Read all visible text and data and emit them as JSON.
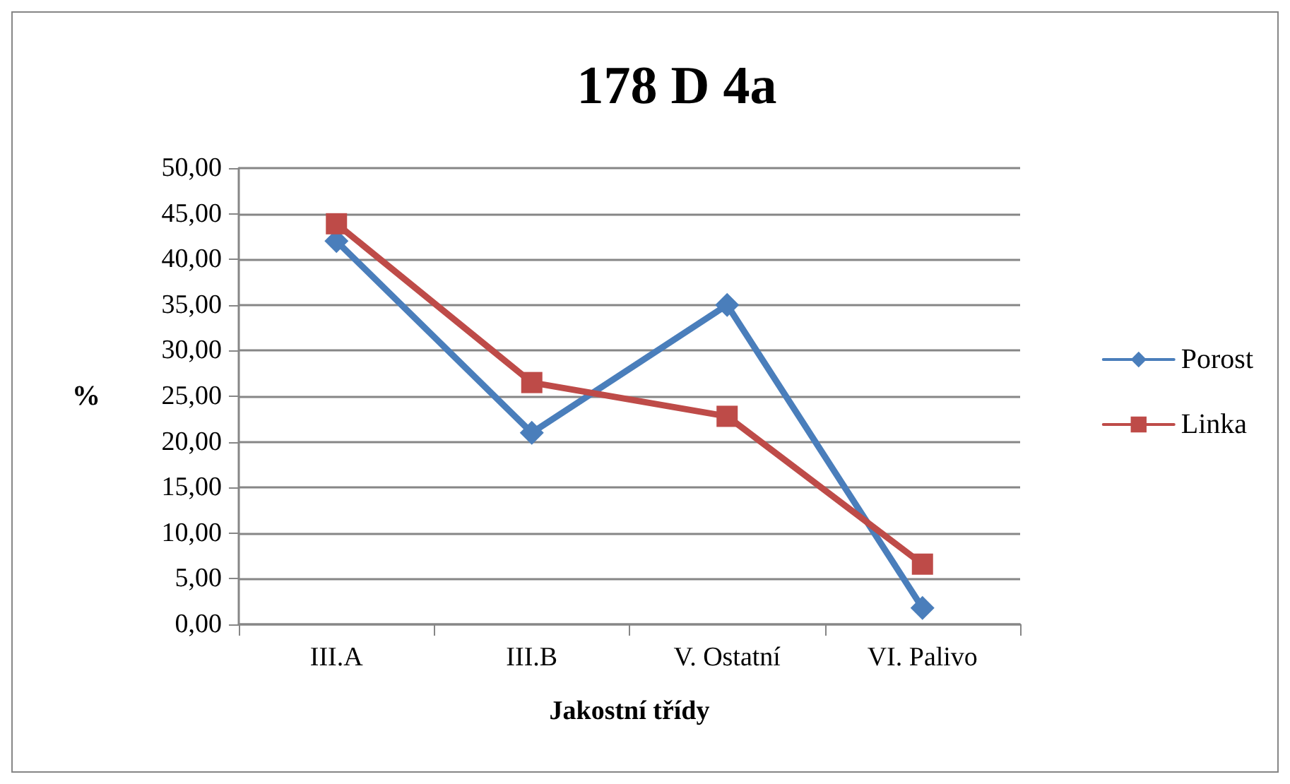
{
  "chart_data": {
    "type": "line",
    "title": "178 D 4a",
    "xlabel": "Jakostní třídy",
    "ylabel": "%",
    "categories": [
      "III.A",
      "III.B",
      "V. Ostatní",
      "VI. Palivo"
    ],
    "series": [
      {
        "name": "Porost",
        "color": "#4a7ebb",
        "values": [
          42.0,
          21.0,
          35.0,
          1.8
        ],
        "marker": "diamond"
      },
      {
        "name": "Linka",
        "color": "#be4b48",
        "values": [
          43.9,
          26.5,
          22.8,
          6.6
        ],
        "marker": "square"
      }
    ],
    "ylim": [
      0,
      50
    ],
    "yticks": [
      {
        "value": 0,
        "label": "0,00"
      },
      {
        "value": 5,
        "label": "5,00"
      },
      {
        "value": 10,
        "label": "10,00"
      },
      {
        "value": 15,
        "label": "15,00"
      },
      {
        "value": 20,
        "label": "20,00"
      },
      {
        "value": 25,
        "label": "25,00"
      },
      {
        "value": 30,
        "label": "30,00"
      },
      {
        "value": 35,
        "label": "35,00"
      },
      {
        "value": 40,
        "label": "40,00"
      },
      {
        "value": 45,
        "label": "45,00"
      },
      {
        "value": 50,
        "label": "50,00"
      }
    ],
    "grid": "y",
    "legend": "right",
    "line_style": "solid"
  }
}
